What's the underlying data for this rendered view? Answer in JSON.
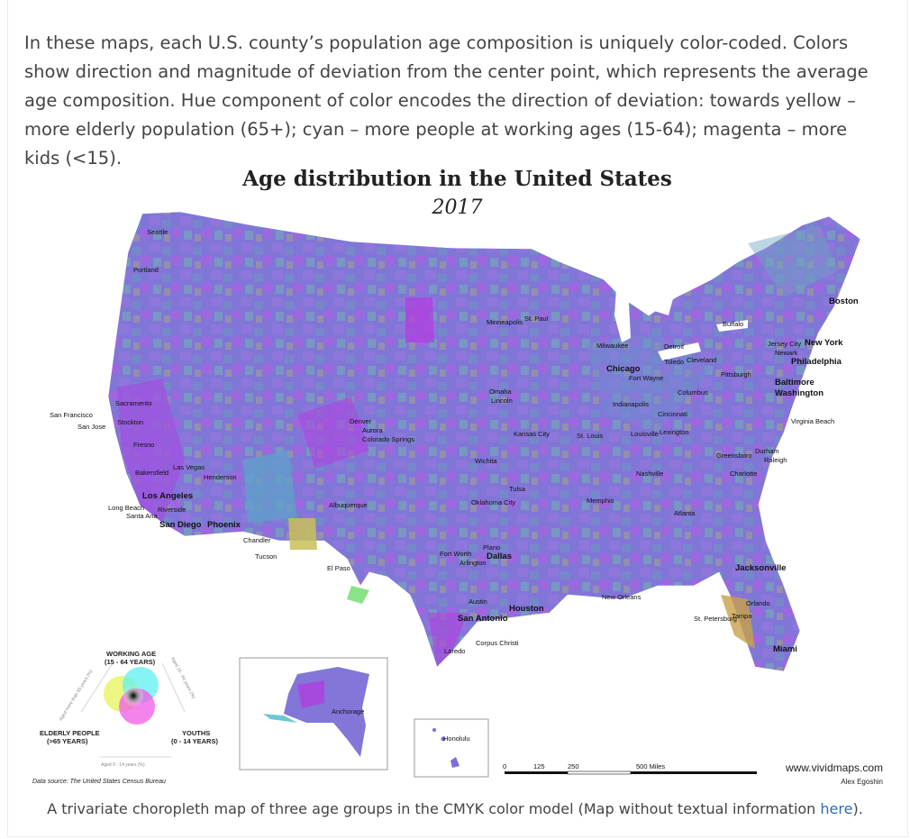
{
  "intro_text": "In these maps, each U.S. county’s population age composition is uniquely color-coded. Colors show direction and magnitude of deviation from the center point, which represents the average age composition. Hue component of color encodes the direction of deviation: towards yellow – more elderly population (65+); cyan – more people at working ages (15-64); magenta – more kids (<15).",
  "map": {
    "title": "Age distribution in the United States",
    "year": "2017",
    "cities": [
      {
        "name": "Seattle",
        "big": false
      },
      {
        "name": "Portland",
        "big": false
      },
      {
        "name": "San Francisco",
        "big": false
      },
      {
        "name": "San Jose",
        "big": false
      },
      {
        "name": "Sacramento",
        "big": false
      },
      {
        "name": "Stockton",
        "big": false
      },
      {
        "name": "Fresno",
        "big": false
      },
      {
        "name": "Bakersfield",
        "big": false
      },
      {
        "name": "Las Vegas",
        "big": false
      },
      {
        "name": "Henderson",
        "big": false
      },
      {
        "name": "Los Angeles",
        "big": true
      },
      {
        "name": "Long Beach",
        "big": false
      },
      {
        "name": "Santa Ana",
        "big": false
      },
      {
        "name": "Riverside",
        "big": false
      },
      {
        "name": "San Diego",
        "big": true
      },
      {
        "name": "Phoenix",
        "big": true
      },
      {
        "name": "Chandler",
        "big": false
      },
      {
        "name": "Tucson",
        "big": false
      },
      {
        "name": "Albuquerque",
        "big": false
      },
      {
        "name": "El Paso",
        "big": false
      },
      {
        "name": "Denver",
        "big": false
      },
      {
        "name": "Aurora",
        "big": false
      },
      {
        "name": "Colorado Springs",
        "big": false
      },
      {
        "name": "Minneapolis",
        "big": false
      },
      {
        "name": "St. Paul",
        "big": false
      },
      {
        "name": "Omaha",
        "big": false
      },
      {
        "name": "Lincoln",
        "big": false
      },
      {
        "name": "Kansas City",
        "big": false
      },
      {
        "name": "Wichita",
        "big": false
      },
      {
        "name": "Tulsa",
        "big": false
      },
      {
        "name": "Oklahoma City",
        "big": false
      },
      {
        "name": "Fort Worth",
        "big": false
      },
      {
        "name": "Dallas",
        "big": true
      },
      {
        "name": "Arlington",
        "big": false
      },
      {
        "name": "Plano",
        "big": false
      },
      {
        "name": "Austin",
        "big": false
      },
      {
        "name": "San Antonio",
        "big": true
      },
      {
        "name": "Houston",
        "big": true
      },
      {
        "name": "Corpus Christi",
        "big": false
      },
      {
        "name": "Laredo",
        "big": false
      },
      {
        "name": "Milwaukee",
        "big": false
      },
      {
        "name": "Chicago",
        "big": true
      },
      {
        "name": "Detroit",
        "big": true
      },
      {
        "name": "Toledo",
        "big": false
      },
      {
        "name": "Cleveland",
        "big": false
      },
      {
        "name": "Fort Wayne",
        "big": false
      },
      {
        "name": "Indianapolis",
        "big": false
      },
      {
        "name": "Columbus",
        "big": false
      },
      {
        "name": "Cincinnati",
        "big": false
      },
      {
        "name": "St. Louis",
        "big": false
      },
      {
        "name": "Louisville",
        "big": false
      },
      {
        "name": "Lexington",
        "big": false
      },
      {
        "name": "Nashville",
        "big": false
      },
      {
        "name": "Memphis",
        "big": false
      },
      {
        "name": "Atlanta",
        "big": false
      },
      {
        "name": "New Orleans",
        "big": false
      },
      {
        "name": "Pittsburgh",
        "big": false
      },
      {
        "name": "Buffalo",
        "big": false
      },
      {
        "name": "Boston",
        "big": true
      },
      {
        "name": "New York",
        "big": true
      },
      {
        "name": "Jersey City",
        "big": false
      },
      {
        "name": "Newark",
        "big": false
      },
      {
        "name": "Philadelphia",
        "big": true
      },
      {
        "name": "Baltimore",
        "big": true
      },
      {
        "name": "Washington",
        "big": true
      },
      {
        "name": "Virginia Beach",
        "big": false
      },
      {
        "name": "Greensboro",
        "big": false
      },
      {
        "name": "Durham",
        "big": false
      },
      {
        "name": "Raleigh",
        "big": false
      },
      {
        "name": "Charlotte",
        "big": false
      },
      {
        "name": "Jacksonville",
        "big": true
      },
      {
        "name": "Orlando",
        "big": false
      },
      {
        "name": "St. Petersburg",
        "big": false
      },
      {
        "name": "Tampa",
        "big": false
      },
      {
        "name": "Miami",
        "big": true
      },
      {
        "name": "Anchorage",
        "big": false
      },
      {
        "name": "Honolulu",
        "big": false
      }
    ],
    "legend": {
      "working_age": "WORKING AGE",
      "working_age_range": "(15 - 64 YEARS)",
      "elderly": "ELDERLY PEOPLE",
      "elderly_range": "(>65 YEARS)",
      "youths": "YOUTHS",
      "youths_range": "(0 - 14 YEARS)",
      "axis_left": "Aged more than 65 years (%)",
      "axis_right": "Aged 15 - 64 years (%)",
      "axis_bottom": "Aged 0 - 14 years (%)"
    },
    "scale": {
      "ticks": [
        "0",
        "125",
        "250",
        "500 Miles"
      ]
    },
    "source": "Data source: The United States Census Bureau",
    "site": "www.vividmaps.com",
    "author": "Alex Egoshin"
  },
  "caption": {
    "text": "A trivariate choropleth map of three age groups in the CMYK color model (Map without textual information ",
    "link": "here",
    "end": ")."
  },
  "colors": {
    "base": "#7b6fd6",
    "magenta": "#b13fe0",
    "cyan": "#5fa0c9",
    "yellow": "#c9c058",
    "link": "#2a6db0"
  }
}
